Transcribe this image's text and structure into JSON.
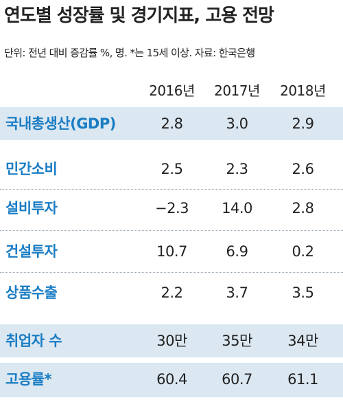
{
  "title": "연도별 성장률 및 경기지표, 고용 전망",
  "unit_note": "단위: 전년 대비 증감률 %, 명. *는 15세 이상. 자료: 한국은행",
  "years": [
    "2016년",
    "2017년",
    "2018년"
  ],
  "rows": [
    {
      "label": "국내총생산(GDP)",
      "values": [
        "2.8",
        "3.0",
        "2.9"
      ]
    },
    {
      "label": "민간소비",
      "values": [
        "2.5",
        "2.3",
        "2.6"
      ]
    },
    {
      "label": "설비투자",
      "values": [
        "−2.3",
        "14.0",
        "2.8"
      ]
    },
    {
      "label": "건설투자",
      "values": [
        "10.7",
        "6.9",
        "0.2"
      ]
    },
    {
      "label": "상품수출",
      "values": [
        "2.2",
        "3.7",
        "3.5"
      ]
    },
    {
      "label": "취업자 수",
      "values": [
        "30만",
        "35만",
        "34만"
      ]
    },
    {
      "label": "고용률*",
      "values": [
        "60.4",
        "60.7",
        "61.1"
      ]
    }
  ],
  "colors": {
    "label": "#1a7dc4",
    "shade": "#dbe7f1"
  }
}
